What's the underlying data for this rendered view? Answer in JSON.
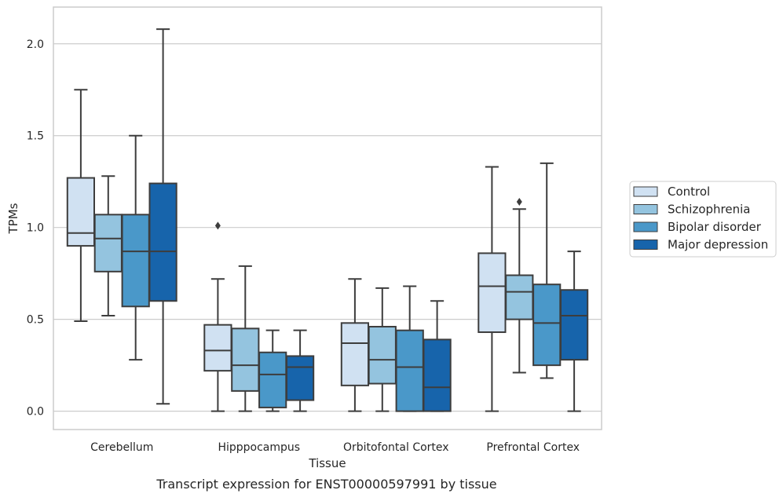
{
  "caption": "Transcript expression for ENST00000597991 by tissue",
  "chart_data": {
    "type": "box",
    "xlabel": "Tissue",
    "ylabel": "TPMs",
    "ylim": [
      -0.1,
      2.2
    ],
    "yticks": [
      0.0,
      0.5,
      1.0,
      1.5,
      2.0
    ],
    "ytick_labels": [
      "0.0",
      "0.5",
      "1.0",
      "1.5",
      "2.0"
    ],
    "grid": true,
    "legend_position": "right-outside",
    "categories": [
      "Cerebellum",
      "Hipppocampus",
      "Orbitofontal Cortex",
      "Prefrontal Cortex"
    ],
    "series": [
      {
        "name": "Control",
        "color": "#d0e1f2",
        "boxes": [
          {
            "whislo": 0.49,
            "q1": 0.9,
            "med": 0.97,
            "q3": 1.27,
            "whishi": 1.75,
            "fliers": []
          },
          {
            "whislo": 0.0,
            "q1": 0.22,
            "med": 0.33,
            "q3": 0.47,
            "whishi": 0.72,
            "fliers": [
              1.01
            ]
          },
          {
            "whislo": 0.0,
            "q1": 0.14,
            "med": 0.37,
            "q3": 0.48,
            "whishi": 0.72,
            "fliers": []
          },
          {
            "whislo": 0.0,
            "q1": 0.43,
            "med": 0.68,
            "q3": 0.86,
            "whishi": 1.33,
            "fliers": []
          }
        ]
      },
      {
        "name": "Schizophrenia",
        "color": "#94c4df",
        "boxes": [
          {
            "whislo": 0.52,
            "q1": 0.76,
            "med": 0.94,
            "q3": 1.07,
            "whishi": 1.28,
            "fliers": []
          },
          {
            "whislo": 0.0,
            "q1": 0.11,
            "med": 0.25,
            "q3": 0.45,
            "whishi": 0.79,
            "fliers": []
          },
          {
            "whislo": 0.0,
            "q1": 0.15,
            "med": 0.28,
            "q3": 0.46,
            "whishi": 0.67,
            "fliers": []
          },
          {
            "whislo": 0.21,
            "q1": 0.5,
            "med": 0.65,
            "q3": 0.74,
            "whishi": 1.1,
            "fliers": [
              1.14
            ]
          }
        ]
      },
      {
        "name": "Bipolar disorder",
        "color": "#4a98c9",
        "boxes": [
          {
            "whislo": 0.28,
            "q1": 0.57,
            "med": 0.87,
            "q3": 1.07,
            "whishi": 1.5,
            "fliers": []
          },
          {
            "whislo": 0.0,
            "q1": 0.02,
            "med": 0.2,
            "q3": 0.32,
            "whishi": 0.44,
            "fliers": []
          },
          {
            "whislo": 0.0,
            "q1": 0.0,
            "med": 0.24,
            "q3": 0.44,
            "whishi": 0.68,
            "fliers": []
          },
          {
            "whislo": 0.18,
            "q1": 0.25,
            "med": 0.48,
            "q3": 0.69,
            "whishi": 1.35,
            "fliers": []
          }
        ]
      },
      {
        "name": "Major depression",
        "color": "#1764ab",
        "boxes": [
          {
            "whislo": 0.04,
            "q1": 0.6,
            "med": 0.87,
            "q3": 1.24,
            "whishi": 2.08,
            "fliers": []
          },
          {
            "whislo": 0.0,
            "q1": 0.06,
            "med": 0.24,
            "q3": 0.3,
            "whishi": 0.44,
            "fliers": []
          },
          {
            "whislo": 0.0,
            "q1": 0.0,
            "med": 0.13,
            "q3": 0.39,
            "whishi": 0.6,
            "fliers": []
          },
          {
            "whislo": 0.0,
            "q1": 0.28,
            "med": 0.52,
            "q3": 0.66,
            "whishi": 0.87,
            "fliers": []
          }
        ]
      }
    ]
  }
}
